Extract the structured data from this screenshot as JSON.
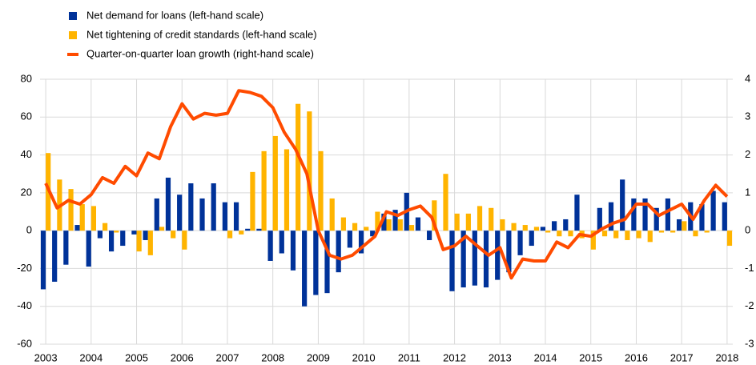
{
  "chart_data": {
    "type": "bar",
    "categories": [
      "2003",
      null,
      null,
      null,
      "2004",
      null,
      null,
      null,
      "2005",
      null,
      null,
      null,
      "2006",
      null,
      null,
      null,
      "2007",
      null,
      null,
      null,
      "2008",
      null,
      null,
      null,
      "2009",
      null,
      null,
      null,
      "2010",
      null,
      null,
      null,
      "2011",
      null,
      null,
      null,
      "2012",
      null,
      null,
      null,
      "2013",
      null,
      null,
      null,
      "2014",
      null,
      null,
      null,
      "2015",
      null,
      null,
      null,
      "2016",
      null,
      null,
      null,
      "2017",
      null,
      null,
      null,
      "2018"
    ],
    "series": [
      {
        "name": "Net demand for loans (left-hand scale)",
        "color": "#003299",
        "type": "bar",
        "values": [
          -31,
          -27,
          -18,
          3,
          -19,
          -4,
          -11,
          -8,
          -2,
          -5,
          17,
          28,
          19,
          25,
          17,
          25,
          15,
          15,
          1,
          1,
          -16,
          -12,
          -21,
          -40,
          -34,
          -33,
          -22,
          -9,
          -12,
          -3,
          9,
          11,
          20,
          7,
          -5,
          0,
          -32,
          -30,
          -29,
          -30,
          -26,
          -22,
          -13,
          -8,
          2,
          5,
          6,
          19,
          0,
          12,
          15,
          27,
          17,
          17,
          12,
          17,
          6,
          15,
          14,
          21,
          15
        ]
      },
      {
        "name": "Net tightening of credit standards (left-hand scale)",
        "color": "#ffb400",
        "type": "bar",
        "values": [
          41,
          27,
          22,
          14,
          13,
          4,
          -1,
          0,
          -11,
          -13,
          2,
          -4,
          -10,
          0,
          0,
          0,
          -4,
          -2,
          31,
          42,
          50,
          43,
          67,
          63,
          42,
          17,
          7,
          4,
          2,
          10,
          6,
          6,
          3,
          0,
          16,
          30,
          9,
          9,
          13,
          12,
          6,
          4,
          3,
          2,
          -1,
          -3,
          -3,
          -4,
          -10,
          -3,
          -4,
          -5,
          -4,
          -6,
          -1,
          -1,
          5,
          -3,
          -1,
          0,
          -8
        ]
      },
      {
        "name": "Quarter-on-quarter loan growth (right-hand scale)",
        "color": "#ff4b00",
        "type": "line",
        "axis": "y2",
        "values": [
          1.25,
          0.6,
          0.8,
          0.7,
          0.95,
          1.4,
          1.25,
          1.7,
          1.45,
          2.05,
          1.9,
          2.75,
          3.35,
          2.95,
          3.1,
          3.05,
          3.1,
          3.7,
          3.65,
          3.55,
          3.25,
          2.6,
          2.15,
          1.5,
          0.0,
          -0.65,
          -0.75,
          -0.65,
          -0.4,
          -0.15,
          0.5,
          0.4,
          0.55,
          0.65,
          0.35,
          -0.5,
          -0.4,
          -0.15,
          -0.4,
          -0.65,
          -0.45,
          -1.25,
          -0.75,
          -0.8,
          -0.8,
          -0.3,
          -0.45,
          -0.1,
          -0.15,
          0.05,
          0.2,
          0.3,
          0.7,
          0.7,
          0.4,
          0.55,
          0.7,
          0.3,
          0.8,
          1.2,
          0.9
        ]
      }
    ],
    "ylim": [
      -60,
      80
    ],
    "yticks": [
      -60,
      -40,
      -20,
      0,
      20,
      40,
      60,
      80
    ],
    "y2lim": [
      -3,
      4
    ],
    "y2ticks": [
      -3,
      -2,
      -1,
      0,
      1,
      2,
      3,
      4
    ],
    "grid": true
  }
}
